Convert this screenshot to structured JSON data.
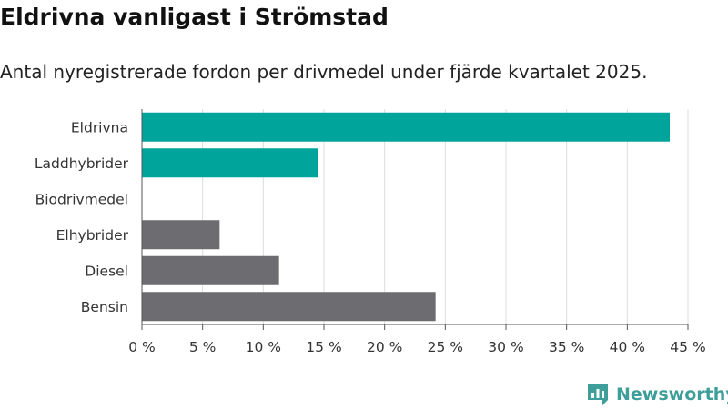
{
  "title": "Eldrivna vanligast i Strömstad",
  "subtitle": "Antal nyregistrerade fordon per drivmedel under fjärde kvartalet 2025.",
  "brand": {
    "name": "Newsworthy",
    "color": "#3d9e9a"
  },
  "colors": {
    "highlight": "#00a49a",
    "base": "#6d6c70",
    "grid": "#dddddd"
  },
  "chart_data": {
    "type": "bar",
    "orientation": "horizontal",
    "categories": [
      "Eldrivna",
      "Laddhybrider",
      "Biodrivmedel",
      "Elhybrider",
      "Diesel",
      "Bensin"
    ],
    "values": [
      43.5,
      14.5,
      0,
      6.4,
      11.3,
      24.2
    ],
    "highlighted": [
      true,
      true,
      true,
      false,
      false,
      false
    ],
    "unit": "%",
    "xlim": [
      0,
      45
    ],
    "xticks": [
      0,
      5,
      10,
      15,
      20,
      25,
      30,
      35,
      40,
      45
    ],
    "xtick_labels": [
      "0 %",
      "5 %",
      "10 %",
      "15 %",
      "20 %",
      "25 %",
      "30 %",
      "35 %",
      "40 %",
      "45 %"
    ],
    "grid": true,
    "legend": "none"
  }
}
